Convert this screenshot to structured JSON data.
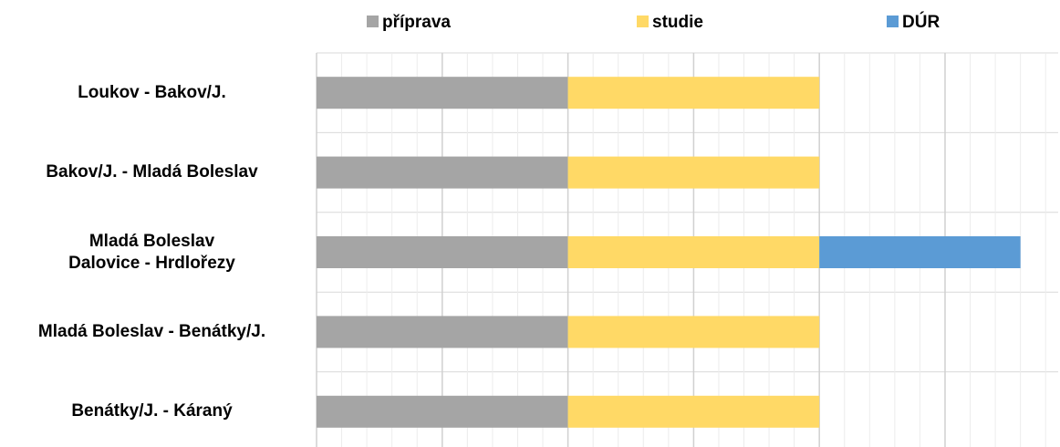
{
  "chart_data": {
    "type": "stacked-barh",
    "categories": [
      "Loukov - Bakov/J.",
      "Bakov/J. - Mladá Boleslav",
      "Mladá Boleslav\nDalovice - Hrdlořezy",
      "Mladá Boleslav - Benátky/J.",
      "Benátky/J. - Káraný"
    ],
    "series": [
      {
        "name": "příprava",
        "color": "#a5a5a5",
        "values": [
          2,
          2,
          2,
          2,
          2
        ]
      },
      {
        "name": "studie",
        "color": "#ffd966",
        "values": [
          2,
          2,
          2,
          2,
          2
        ]
      },
      {
        "name": "DÚR",
        "color": "#5b9bd5",
        "values": [
          null,
          null,
          1.6,
          null,
          null
        ]
      }
    ],
    "xlim": [
      0,
      5.9
    ],
    "xticks": [
      0,
      1,
      2,
      3,
      4,
      5
    ],
    "xminorticks": [
      0.2,
      0.4,
      0.6,
      0.8,
      1.2,
      1.4,
      1.6,
      1.8,
      2.2,
      2.4,
      2.6,
      2.8,
      3.2,
      3.4,
      3.6,
      3.8,
      4.2,
      4.4,
      4.6,
      4.8,
      5.2,
      5.4,
      5.6,
      5.8
    ],
    "grid": true,
    "legend": "top"
  }
}
